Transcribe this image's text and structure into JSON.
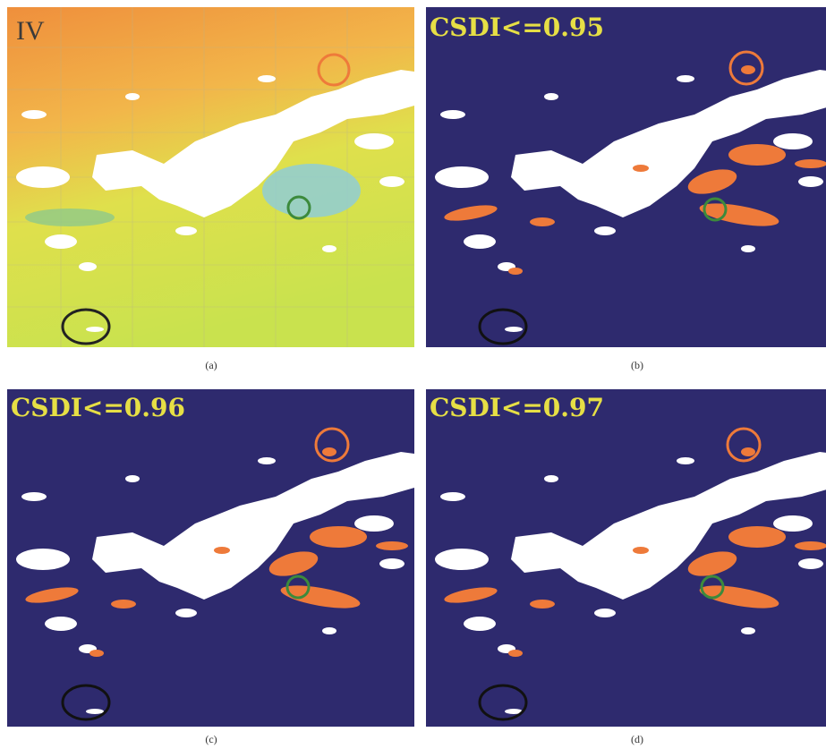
{
  "panels": [
    {
      "label": "IV",
      "caption": "(a)"
    },
    {
      "label": "CSDI<=0.95",
      "caption": "(b)"
    },
    {
      "label": "CSDI<=0.96",
      "caption": "(c)"
    },
    {
      "label": "CSDI<=0.97",
      "caption": "(d)"
    }
  ]
}
